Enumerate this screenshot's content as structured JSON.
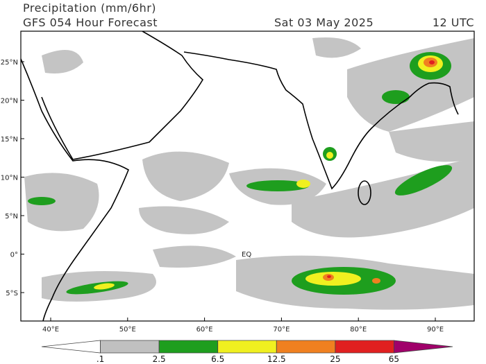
{
  "header": {
    "title": "Precipitation (mm/6hr)",
    "subtitle": "GFS 054 Hour Forecast",
    "date": "Sat 03 May 2025",
    "time": "12 UTC"
  },
  "map": {
    "lat_labels": [
      "25°N",
      "20°N",
      "15°N",
      "10°N",
      "5°N",
      "0°",
      "5°S"
    ],
    "lon_labels": [
      "40°E",
      "50°E",
      "60°E",
      "70°E",
      "80°E",
      "90°E"
    ],
    "equator_label": "EQ"
  },
  "colorbar": {
    "labels": [
      ".1",
      "2.5",
      "6.5",
      "12.5",
      "25",
      "65"
    ],
    "colors": [
      "#ffffff",
      "#c0c0c0",
      "#1e9e1e",
      "#f0f020",
      "#f08020",
      "#e02020",
      "#a0006a"
    ]
  }
}
